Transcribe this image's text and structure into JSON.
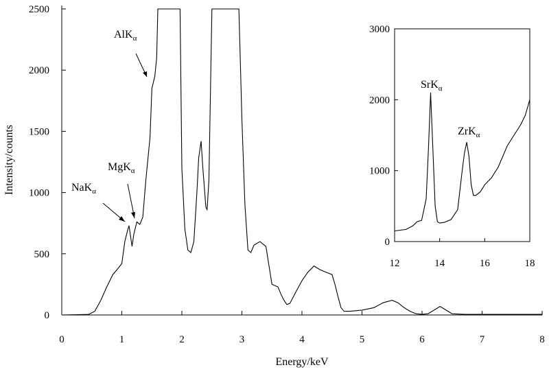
{
  "chart_data": [
    {
      "type": "line",
      "xlabel": "Energy/keV",
      "ylabel": "Intensity/counts",
      "xlim": [
        0,
        8
      ],
      "ylim": [
        0,
        2500
      ],
      "x_ticks": [
        "0",
        "1",
        "2",
        "3",
        "4",
        "5",
        "6",
        "7",
        "8"
      ],
      "y_ticks": [
        "0",
        "500",
        "1000",
        "1500",
        "2000",
        "2500"
      ],
      "legend": "none",
      "grid": false,
      "series": [
        {
          "x": [
            0.0,
            0.45,
            0.55,
            0.65,
            0.75,
            0.85,
            0.92,
            1.0,
            1.05,
            1.1,
            1.12,
            1.17,
            1.2,
            1.25,
            1.3,
            1.35,
            1.4,
            1.47,
            1.5,
            1.55,
            1.58,
            1.6,
            1.7,
            1.85,
            1.95,
            1.97,
            2.0,
            2.05,
            2.1,
            2.15,
            2.2,
            2.25,
            2.28,
            2.32,
            2.35,
            2.4,
            2.42,
            2.45,
            2.5,
            2.52,
            2.9,
            2.95,
            3.0,
            3.05,
            3.1,
            3.15,
            3.2,
            3.3,
            3.4,
            3.5,
            3.6,
            3.65,
            3.7,
            3.75,
            3.8,
            3.9,
            4.0,
            4.1,
            4.2,
            4.3,
            4.4,
            4.5,
            4.55,
            4.6,
            4.65,
            4.7,
            4.8,
            5.0,
            5.2,
            5.35,
            5.5,
            5.6,
            5.7,
            5.8,
            5.9,
            6.0,
            6.1,
            6.2,
            6.3,
            6.4,
            6.5,
            6.7,
            7.0,
            7.5,
            8.0
          ],
          "y": [
            0,
            5,
            30,
            120,
            230,
            330,
            370,
            420,
            600,
            700,
            730,
            560,
            660,
            760,
            740,
            800,
            1100,
            1450,
            1850,
            1950,
            2100,
            2500,
            2500,
            2500,
            2500,
            2500,
            1200,
            700,
            530,
            510,
            600,
            1000,
            1280,
            1420,
            1200,
            880,
            860,
            1100,
            2500,
            2500,
            2500,
            2500,
            1600,
            900,
            530,
            510,
            570,
            600,
            560,
            250,
            230,
            170,
            120,
            85,
            95,
            190,
            280,
            350,
            400,
            370,
            350,
            330,
            250,
            150,
            60,
            30,
            30,
            40,
            60,
            100,
            120,
            100,
            60,
            30,
            10,
            5,
            10,
            40,
            70,
            40,
            10,
            5,
            5,
            5,
            5
          ]
        }
      ],
      "annotations": [
        {
          "label": "AlK",
          "subscript": "α"
        },
        {
          "label": "MgK",
          "subscript": "α"
        },
        {
          "label": "NaK",
          "subscript": "α"
        }
      ]
    },
    {
      "type": "line",
      "inset": true,
      "xlim": [
        12,
        18
      ],
      "ylim": [
        0,
        3000
      ],
      "x_ticks": [
        "12",
        "14",
        "16",
        "18"
      ],
      "y_ticks": [
        "0",
        "1000",
        "2000",
        "3000"
      ],
      "series": [
        {
          "x": [
            12.0,
            12.5,
            12.8,
            13.0,
            13.2,
            13.4,
            13.5,
            13.6,
            13.7,
            13.8,
            13.9,
            14.0,
            14.2,
            14.5,
            14.8,
            15.0,
            15.1,
            15.2,
            15.3,
            15.4,
            15.5,
            15.6,
            15.8,
            16.0,
            16.3,
            16.6,
            17.0,
            17.3,
            17.6,
            17.8,
            18.0
          ],
          "y": [
            150,
            170,
            220,
            280,
            300,
            600,
            1300,
            2100,
            1300,
            500,
            280,
            260,
            270,
            310,
            450,
            1000,
            1250,
            1400,
            1200,
            800,
            650,
            650,
            700,
            800,
            900,
            1050,
            1350,
            1500,
            1650,
            1780,
            2000
          ]
        }
      ],
      "annotations": [
        {
          "label": "SrK",
          "subscript": "α"
        },
        {
          "label": "ZrK",
          "subscript": "α"
        }
      ]
    }
  ]
}
